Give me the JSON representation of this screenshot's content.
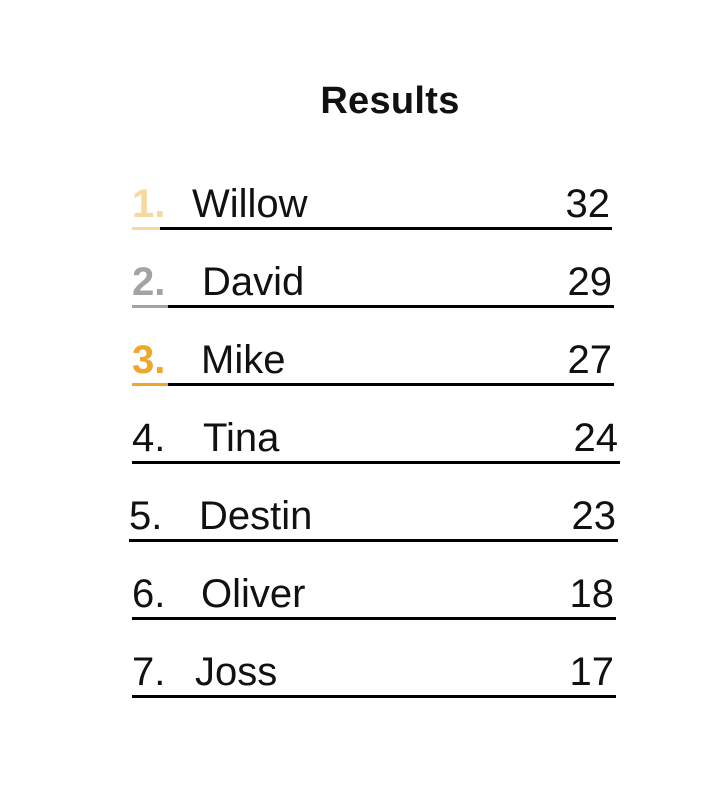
{
  "title": "Results",
  "entries": [
    {
      "rank": "1.",
      "name": "Willow",
      "score": "32",
      "rank_color": "#f6d8a0"
    },
    {
      "rank": "2.",
      "name": "David",
      "score": "29",
      "rank_color": "#a3a3a3"
    },
    {
      "rank": "3.",
      "name": "Mike",
      "score": "27",
      "rank_color": "#f0a62b"
    },
    {
      "rank": "4.",
      "name": "Tina",
      "score": "24",
      "rank_color": "#111111"
    },
    {
      "rank": "5.",
      "name": "Destin",
      "score": "23",
      "rank_color": "#111111"
    },
    {
      "rank": "6.",
      "name": "Oliver",
      "score": "18",
      "rank_color": "#111111"
    },
    {
      "rank": "7.",
      "name": "Joss",
      "score": "17",
      "rank_color": "#111111"
    }
  ]
}
